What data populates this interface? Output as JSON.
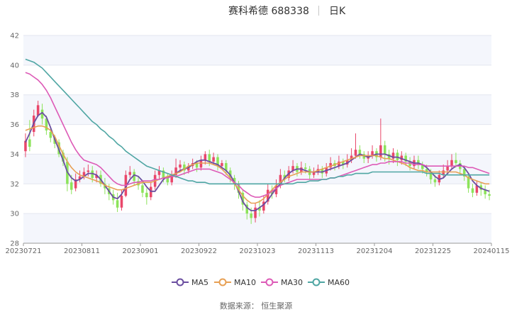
{
  "header": {
    "title": "赛科希德 688338",
    "period": "日K"
  },
  "colors": {
    "up": "#e9476a",
    "down": "#8ce35a",
    "band": "#f4f6fc",
    "grid": "#e3e6ef",
    "ma5": "#6b4ea0",
    "ma10": "#e7a054",
    "ma30": "#dd5bb7",
    "ma60": "#4fa6a3"
  },
  "legend": [
    {
      "key": "ma5",
      "label": "MA5"
    },
    {
      "key": "ma10",
      "label": "MA10"
    },
    {
      "key": "ma30",
      "label": "MA30"
    },
    {
      "key": "ma60",
      "label": "MA60"
    }
  ],
  "source": "数据来源：  恒生聚源",
  "chart_data": {
    "type": "candlestick",
    "y_ticks": [
      "28",
      "30",
      "32",
      "34",
      "36",
      "38",
      "40",
      "42"
    ],
    "ylim": [
      28,
      42
    ],
    "x_labels": [
      "20230721",
      "20230811",
      "20230901",
      "20230922",
      "20231023",
      "20231113",
      "20231204",
      "20231225",
      "20240115"
    ],
    "x_label_index": [
      0,
      15,
      30,
      45,
      60,
      75,
      90,
      105,
      120
    ],
    "grid": true,
    "legend_position": "bottom",
    "candles": [
      [
        34.2,
        34.9,
        35.4,
        33.8
      ],
      [
        35.0,
        34.5,
        36.3,
        34.2
      ],
      [
        35.5,
        36.6,
        37.0,
        35.2
      ],
      [
        36.6,
        37.3,
        37.6,
        36.5
      ],
      [
        37.0,
        36.4,
        37.4,
        36.0
      ],
      [
        36.4,
        35.6,
        36.6,
        35.3
      ],
      [
        35.5,
        35.1,
        35.8,
        34.8
      ],
      [
        35.1,
        34.7,
        35.3,
        34.4
      ],
      [
        34.8,
        34.0,
        35.0,
        33.8
      ],
      [
        34.1,
        33.5,
        34.3,
        33.2
      ],
      [
        33.5,
        32.0,
        33.8,
        31.5
      ],
      [
        32.1,
        31.6,
        32.6,
        31.3
      ],
      [
        31.7,
        32.3,
        32.7,
        31.5
      ],
      [
        32.3,
        32.5,
        32.9,
        32.1
      ],
      [
        32.5,
        32.8,
        33.1,
        32.3
      ],
      [
        32.8,
        32.9,
        33.3,
        32.5
      ],
      [
        32.9,
        32.4,
        33.2,
        32.1
      ],
      [
        32.4,
        32.6,
        32.9,
        32.1
      ],
      [
        32.6,
        32.0,
        32.9,
        31.8
      ],
      [
        32.0,
        31.7,
        32.4,
        31.3
      ],
      [
        31.7,
        31.3,
        32.0,
        30.9
      ],
      [
        31.3,
        30.9,
        31.6,
        30.6
      ],
      [
        30.9,
        30.4,
        31.4,
        30.1
      ],
      [
        30.4,
        31.2,
        31.6,
        30.2
      ],
      [
        31.2,
        32.6,
        32.9,
        31.1
      ],
      [
        32.6,
        32.8,
        33.2,
        32.4
      ],
      [
        32.8,
        32.2,
        33.0,
        31.9
      ],
      [
        32.2,
        31.9,
        32.5,
        31.6
      ],
      [
        31.9,
        31.4,
        32.2,
        31.1
      ],
      [
        31.4,
        31.1,
        31.7,
        30.6
      ],
      [
        31.1,
        31.8,
        32.1,
        30.9
      ],
      [
        31.8,
        32.6,
        32.9,
        31.6
      ],
      [
        32.6,
        32.9,
        33.2,
        32.3
      ],
      [
        32.9,
        32.4,
        33.1,
        32.1
      ],
      [
        32.4,
        32.1,
        32.7,
        31.9
      ],
      [
        32.1,
        32.6,
        32.9,
        31.9
      ],
      [
        32.6,
        33.1,
        33.7,
        32.4
      ],
      [
        33.1,
        33.3,
        33.6,
        32.9
      ],
      [
        33.3,
        32.9,
        33.5,
        32.6
      ],
      [
        32.9,
        33.2,
        33.4,
        32.7
      ],
      [
        33.2,
        33.4,
        33.7,
        33.0
      ],
      [
        33.4,
        33.1,
        33.6,
        32.8
      ],
      [
        33.1,
        33.6,
        33.9,
        32.9
      ],
      [
        33.6,
        34.0,
        34.2,
        33.3
      ],
      [
        34.0,
        33.5,
        34.3,
        33.2
      ],
      [
        33.5,
        33.8,
        34.1,
        33.3
      ],
      [
        33.8,
        33.2,
        34.0,
        32.9
      ],
      [
        33.2,
        33.4,
        33.6,
        33.0
      ],
      [
        33.4,
        32.9,
        33.6,
        32.6
      ],
      [
        32.9,
        32.4,
        33.1,
        32.1
      ],
      [
        32.4,
        32.0,
        32.6,
        31.6
      ],
      [
        32.0,
        31.4,
        32.2,
        31.0
      ],
      [
        31.4,
        30.6,
        31.6,
        30.2
      ],
      [
        30.6,
        30.0,
        30.8,
        29.6
      ],
      [
        30.0,
        29.7,
        30.4,
        29.3
      ],
      [
        29.7,
        30.4,
        30.7,
        29.4
      ],
      [
        30.4,
        30.2,
        30.9,
        29.8
      ],
      [
        30.2,
        30.8,
        31.2,
        30.0
      ],
      [
        30.8,
        31.6,
        32.0,
        30.6
      ],
      [
        31.6,
        31.3,
        31.9,
        31.0
      ],
      [
        31.3,
        31.9,
        32.3,
        31.1
      ],
      [
        31.9,
        32.6,
        33.0,
        31.7
      ],
      [
        32.6,
        32.4,
        32.9,
        32.1
      ],
      [
        32.4,
        32.9,
        33.2,
        32.2
      ],
      [
        32.9,
        33.2,
        33.6,
        32.7
      ],
      [
        33.2,
        32.8,
        33.4,
        32.5
      ],
      [
        32.8,
        33.1,
        33.5,
        32.6
      ],
      [
        33.1,
        33.0,
        33.4,
        32.7
      ],
      [
        33.0,
        32.6,
        33.2,
        32.3
      ],
      [
        32.6,
        32.8,
        33.1,
        32.4
      ],
      [
        32.8,
        33.0,
        33.3,
        32.6
      ],
      [
        33.0,
        32.7,
        33.2,
        32.4
      ],
      [
        32.7,
        33.1,
        33.4,
        32.5
      ],
      [
        33.1,
        33.4,
        33.8,
        32.9
      ],
      [
        33.4,
        33.2,
        33.6,
        32.9
      ],
      [
        33.2,
        33.5,
        33.9,
        33.0
      ],
      [
        33.5,
        33.3,
        33.7,
        33.0
      ],
      [
        33.3,
        33.6,
        34.0,
        33.1
      ],
      [
        33.6,
        33.9,
        34.4,
        33.4
      ],
      [
        33.9,
        34.3,
        35.4,
        33.7
      ],
      [
        34.3,
        34.0,
        34.6,
        33.7
      ],
      [
        34.0,
        33.7,
        34.2,
        33.4
      ],
      [
        33.7,
        33.9,
        34.2,
        33.4
      ],
      [
        33.9,
        34.2,
        34.6,
        33.7
      ],
      [
        34.2,
        33.8,
        34.4,
        33.5
      ],
      [
        33.8,
        34.6,
        36.4,
        33.6
      ],
      [
        34.6,
        34.0,
        34.9,
        33.5
      ],
      [
        34.0,
        33.7,
        34.3,
        33.3
      ],
      [
        33.7,
        34.1,
        34.4,
        33.4
      ],
      [
        34.1,
        33.6,
        34.3,
        33.2
      ],
      [
        33.6,
        33.9,
        34.2,
        33.3
      ],
      [
        33.9,
        33.5,
        34.1,
        33.2
      ],
      [
        33.5,
        33.2,
        33.8,
        32.9
      ],
      [
        33.2,
        33.6,
        33.9,
        33.0
      ],
      [
        33.6,
        33.3,
        33.9,
        33.0
      ],
      [
        33.3,
        33.0,
        33.5,
        32.7
      ],
      [
        33.0,
        32.8,
        33.3,
        32.5
      ],
      [
        32.8,
        32.3,
        33.0,
        32.0
      ],
      [
        32.3,
        32.1,
        32.6,
        31.8
      ],
      [
        32.1,
        32.6,
        32.9,
        31.9
      ],
      [
        32.6,
        32.9,
        33.3,
        32.4
      ],
      [
        32.9,
        33.2,
        33.6,
        32.7
      ],
      [
        33.2,
        33.6,
        34.0,
        33.0
      ],
      [
        33.6,
        33.4,
        34.1,
        33.1
      ],
      [
        33.4,
        33.0,
        33.6,
        32.6
      ],
      [
        33.0,
        32.5,
        33.2,
        32.2
      ],
      [
        32.5,
        31.7,
        32.7,
        31.4
      ],
      [
        31.7,
        31.4,
        32.0,
        31.1
      ],
      [
        31.4,
        31.9,
        32.2,
        31.2
      ],
      [
        31.9,
        31.6,
        32.1,
        31.2
      ],
      [
        31.6,
        31.3,
        31.9,
        31.0
      ],
      [
        31.3,
        31.2,
        31.6,
        30.9
      ]
    ],
    "series": [
      {
        "name": "MA5",
        "values": [
          34.8,
          35.4,
          36.1,
          36.6,
          36.8,
          36.5,
          35.8,
          35.0,
          34.3,
          33.6,
          32.8,
          32.4,
          32.2,
          32.3,
          32.5,
          32.7,
          32.7,
          32.6,
          32.3,
          31.9,
          31.5,
          31.1,
          31.0,
          31.3,
          31.8,
          32.3,
          32.6,
          32.5,
          32.2,
          31.8,
          31.5,
          31.5,
          31.9,
          32.3,
          32.5,
          32.5,
          32.7,
          32.9,
          33.0,
          33.1,
          33.3,
          33.5,
          33.6,
          33.6,
          33.5,
          33.4,
          33.3,
          33.1,
          32.9,
          32.6,
          32.1,
          31.5,
          30.8,
          30.4,
          30.2,
          30.2,
          30.4,
          30.6,
          30.9,
          31.3,
          31.7,
          32.0,
          32.4,
          32.7,
          32.9,
          33.0,
          33.0,
          32.9,
          32.8,
          32.8,
          32.8,
          32.8,
          32.9,
          33.0,
          33.1,
          33.2,
          33.3,
          33.4,
          33.6,
          33.8,
          34.0,
          33.9,
          33.8,
          33.9,
          34.0,
          34.0,
          34.0,
          33.9,
          33.8,
          33.8,
          33.7,
          33.6,
          33.5,
          33.4,
          33.4,
          33.3,
          33.1,
          32.8,
          32.5,
          32.3,
          32.4,
          32.7,
          33.0,
          33.2,
          33.3,
          33.1,
          32.7,
          32.2,
          31.9,
          31.7,
          31.6,
          31.5
        ]
      },
      {
        "name": "MA10",
        "values": [
          35.6,
          35.7,
          35.8,
          35.9,
          35.9,
          35.8,
          35.6,
          35.2,
          34.6,
          34.0,
          33.5,
          33.1,
          32.8,
          32.6,
          32.5,
          32.4,
          32.3,
          32.2,
          32.1,
          31.9,
          31.8,
          31.7,
          31.6,
          31.6,
          31.7,
          31.8,
          31.9,
          32.0,
          32.1,
          32.1,
          32.1,
          32.2,
          32.3,
          32.4,
          32.5,
          32.6,
          32.7,
          32.8,
          33.0,
          33.2,
          33.3,
          33.4,
          33.4,
          33.4,
          33.4,
          33.3,
          33.2,
          33.0,
          32.7,
          32.4,
          32.0,
          31.6,
          31.2,
          30.9,
          30.7,
          30.7,
          30.8,
          31.0,
          31.3,
          31.6,
          31.9,
          32.1,
          32.3,
          32.5,
          32.6,
          32.7,
          32.8,
          32.8,
          32.8,
          32.8,
          32.9,
          33.0,
          33.1,
          33.2,
          33.3,
          33.4,
          33.5,
          33.6,
          33.7,
          33.8,
          33.9,
          33.9,
          33.9,
          33.9,
          33.9,
          33.8,
          33.7,
          33.7,
          33.6,
          33.5,
          33.4,
          33.3,
          33.1,
          33.0,
          32.9,
          32.9,
          32.8,
          32.8,
          32.8,
          32.8,
          32.8,
          32.8,
          32.8,
          32.8,
          32.7,
          32.6,
          32.4,
          32.3,
          32.2,
          32.1,
          32.0,
          32.0
        ]
      },
      {
        "name": "MA30",
        "values": [
          39.5,
          39.4,
          39.2,
          39.0,
          38.7,
          38.3,
          37.8,
          37.2,
          36.6,
          36.0,
          35.4,
          34.8,
          34.3,
          33.9,
          33.6,
          33.5,
          33.4,
          33.3,
          33.1,
          32.8,
          32.5,
          32.2,
          32.0,
          31.9,
          31.9,
          32.0,
          32.1,
          32.1,
          32.2,
          32.2,
          32.2,
          32.3,
          32.3,
          32.4,
          32.4,
          32.5,
          32.5,
          32.6,
          32.7,
          32.8,
          32.9,
          33.0,
          33.0,
          33.0,
          33.0,
          32.9,
          32.8,
          32.7,
          32.5,
          32.3,
          32.1,
          31.9,
          31.6,
          31.4,
          31.2,
          31.1,
          31.1,
          31.2,
          31.3,
          31.5,
          31.7,
          31.9,
          32.0,
          32.1,
          32.2,
          32.3,
          32.3,
          32.3,
          32.3,
          32.3,
          32.3,
          32.3,
          32.3,
          32.4,
          32.4,
          32.5,
          32.6,
          32.7,
          32.8,
          32.9,
          33.0,
          33.1,
          33.2,
          33.3,
          33.3,
          33.4,
          33.4,
          33.5,
          33.5,
          33.5,
          33.5,
          33.4,
          33.4,
          33.3,
          33.3,
          33.3,
          33.2,
          33.2,
          33.2,
          33.2,
          33.2,
          33.2,
          33.2,
          33.2,
          33.2,
          33.2,
          33.1,
          33.1,
          33.0,
          32.9,
          32.8,
          32.7
        ]
      },
      {
        "name": "MA60",
        "values": [
          40.4,
          40.3,
          40.2,
          40.0,
          39.8,
          39.5,
          39.2,
          38.9,
          38.6,
          38.3,
          38.0,
          37.7,
          37.4,
          37.1,
          36.8,
          36.5,
          36.2,
          36.0,
          35.7,
          35.5,
          35.2,
          35.0,
          34.7,
          34.5,
          34.2,
          34.0,
          33.8,
          33.6,
          33.4,
          33.2,
          33.1,
          33.0,
          32.9,
          32.8,
          32.7,
          32.6,
          32.5,
          32.4,
          32.3,
          32.2,
          32.2,
          32.1,
          32.1,
          32.1,
          32.0,
          32.0,
          32.0,
          32.0,
          32.0,
          32.0,
          32.0,
          32.0,
          32.0,
          32.0,
          32.0,
          32.0,
          32.0,
          32.0,
          32.0,
          32.0,
          32.0,
          32.0,
          32.0,
          32.0,
          32.0,
          32.1,
          32.1,
          32.1,
          32.2,
          32.2,
          32.2,
          32.3,
          32.3,
          32.4,
          32.4,
          32.5,
          32.5,
          32.6,
          32.6,
          32.7,
          32.7,
          32.7,
          32.7,
          32.8,
          32.8,
          32.8,
          32.8,
          32.8,
          32.8,
          32.8,
          32.8,
          32.8,
          32.8,
          32.8,
          32.8,
          32.8,
          32.7,
          32.7,
          32.7,
          32.7,
          32.6,
          32.6,
          32.6,
          32.6,
          32.6,
          32.6,
          32.6,
          32.6,
          32.6,
          32.6,
          32.6,
          32.6
        ]
      }
    ]
  }
}
